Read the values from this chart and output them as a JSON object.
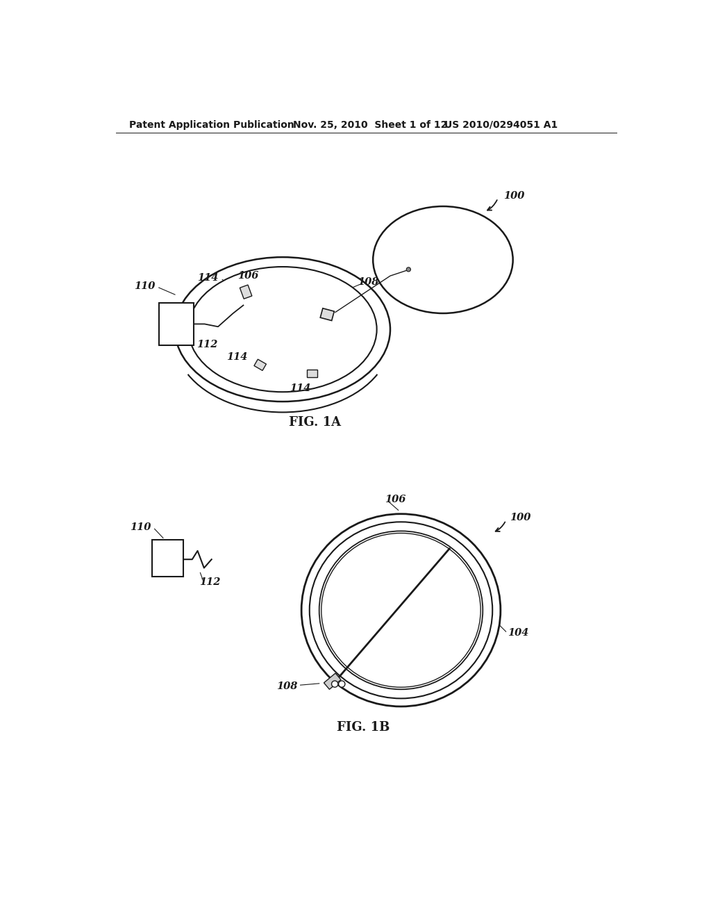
{
  "background_color": "#ffffff",
  "header_left": "Patent Application Publication",
  "header_mid": "Nov. 25, 2010  Sheet 1 of 12",
  "header_right": "US 2010/0294051 A1",
  "fig1a_caption": "FIG. 1A",
  "fig1b_caption": "FIG. 1B",
  "line_color": "#1a1a1a",
  "text_color": "#1a1a1a",
  "label_fontsize": 10.5,
  "header_fontsize": 10,
  "caption_fontsize": 13
}
